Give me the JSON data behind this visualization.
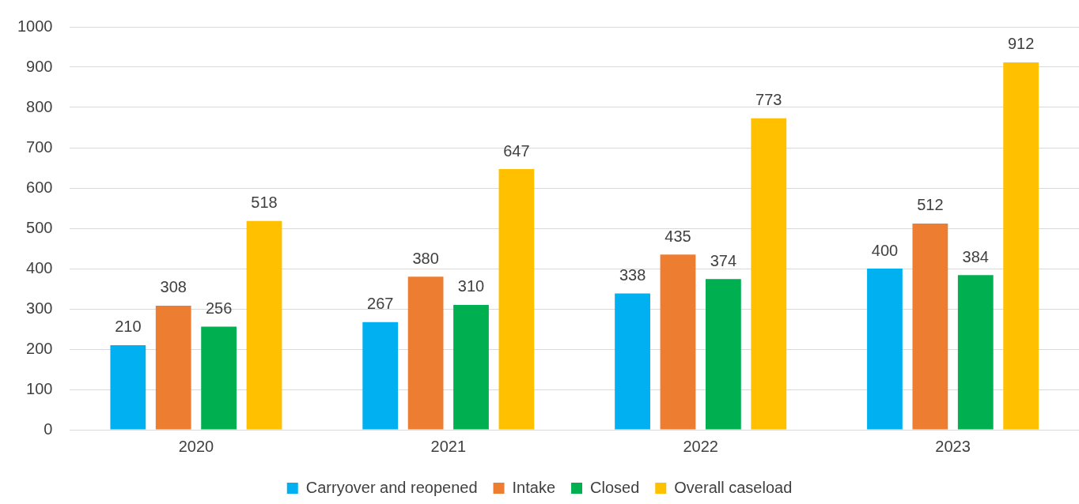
{
  "chart_data": {
    "type": "bar",
    "categories": [
      "2020",
      "2021",
      "2022",
      "2023"
    ],
    "series": [
      {
        "name": "Carryover and reopened",
        "color": "#00b0f0",
        "values": [
          210,
          267,
          338,
          400
        ]
      },
      {
        "name": "Intake",
        "color": "#ed7d31",
        "values": [
          308,
          380,
          435,
          512
        ]
      },
      {
        "name": "Closed",
        "color": "#00b050",
        "values": [
          256,
          310,
          374,
          384
        ]
      },
      {
        "name": "Overall caseload",
        "color": "#ffc000",
        "values": [
          518,
          647,
          773,
          912
        ]
      }
    ],
    "ylim": [
      0,
      1000
    ],
    "yticks": [
      0,
      100,
      200,
      300,
      400,
      500,
      600,
      700,
      800,
      900,
      1000
    ],
    "grid": "y",
    "legend": "bottom",
    "data_labels": true
  }
}
